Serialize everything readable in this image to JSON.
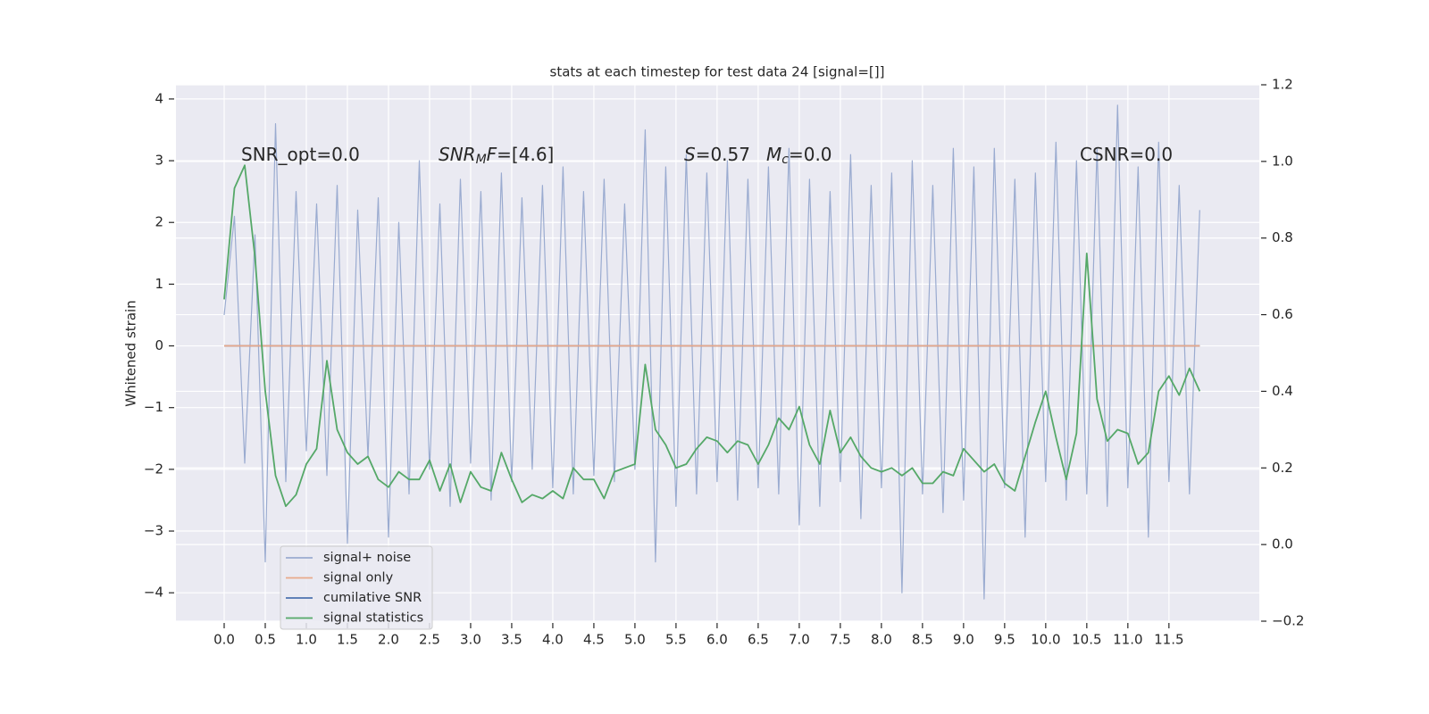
{
  "chart_data": {
    "type": "line",
    "title": "stats at each timestep for test data 24 [signal=[]]",
    "y_label": "Whitened strain",
    "x": [
      0,
      0.125,
      0.25,
      0.375,
      0.5,
      0.625,
      0.75,
      0.875,
      1,
      1.125,
      1.25,
      1.375,
      1.5,
      1.625,
      1.75,
      1.875,
      2,
      2.125,
      2.25,
      2.375,
      2.5,
      2.625,
      2.75,
      2.875,
      3,
      3.125,
      3.25,
      3.375,
      3.5,
      3.625,
      3.75,
      3.875,
      4,
      4.125,
      4.25,
      4.375,
      4.5,
      4.625,
      4.75,
      4.875,
      5,
      5.125,
      5.25,
      5.375,
      5.5,
      5.625,
      5.75,
      5.875,
      6,
      6.125,
      6.25,
      6.375,
      6.5,
      6.625,
      6.75,
      6.875,
      7,
      7.125,
      7.25,
      7.375,
      7.5,
      7.625,
      7.75,
      7.875,
      8,
      8.125,
      8.25,
      8.375,
      8.5,
      8.625,
      8.75,
      8.875,
      9,
      9.125,
      9.25,
      9.375,
      9.5,
      9.625,
      9.75,
      9.875,
      10,
      10.125,
      10.25,
      10.375,
      10.5,
      10.625,
      10.75,
      10.875,
      11,
      11.125,
      11.25,
      11.375,
      11.5,
      11.625,
      11.75,
      11.875
    ],
    "series": [
      {
        "name": "signal+ noise",
        "color": "#9aabd0",
        "values": [
          0.5,
          2.1,
          -1.9,
          1.8,
          -3.5,
          3.6,
          -2.2,
          2.5,
          -1.7,
          2.3,
          -2.1,
          2.6,
          -3.2,
          2.2,
          -1.8,
          2.4,
          -3.1,
          2.0,
          -2.4,
          3.0,
          -2.0,
          2.3,
          -2.6,
          2.7,
          -1.9,
          2.5,
          -2.5,
          2.8,
          -2.2,
          2.4,
          -2.0,
          2.6,
          -2.3,
          2.9,
          -2.4,
          2.5,
          -2.1,
          2.7,
          -2.2,
          2.3,
          -2.0,
          3.5,
          -3.5,
          2.9,
          -2.6,
          3.1,
          -2.4,
          2.8,
          -2.2,
          3.0,
          -2.5,
          2.7,
          -2.3,
          2.9,
          -2.4,
          3.2,
          -2.9,
          2.7,
          -2.6,
          2.5,
          -2.2,
          3.1,
          -2.8,
          2.6,
          -2.3,
          2.8,
          -4.0,
          3.0,
          -2.4,
          2.6,
          -2.7,
          3.2,
          -2.5,
          2.9,
          -4.1,
          3.2,
          -2.3,
          2.7,
          -3.1,
          2.8,
          -2.2,
          3.3,
          -2.5,
          3.0,
          -2.4,
          3.2,
          -2.6,
          3.9,
          -2.3,
          2.9,
          -3.1,
          3.3,
          -2.2,
          2.6,
          -2.4,
          2.2
        ]
      },
      {
        "name": "signal only",
        "color": "#e8a98a",
        "values": [
          0,
          0,
          0,
          0,
          0,
          0,
          0,
          0,
          0,
          0,
          0,
          0,
          0,
          0,
          0,
          0,
          0,
          0,
          0,
          0,
          0,
          0,
          0,
          0,
          0,
          0,
          0,
          0,
          0,
          0,
          0,
          0,
          0,
          0,
          0,
          0,
          0,
          0,
          0,
          0,
          0,
          0,
          0,
          0,
          0,
          0,
          0,
          0,
          0,
          0,
          0,
          0,
          0,
          0,
          0,
          0,
          0,
          0,
          0,
          0,
          0,
          0,
          0,
          0,
          0,
          0,
          0,
          0,
          0,
          0,
          0,
          0,
          0,
          0,
          0,
          0,
          0,
          0,
          0,
          0,
          0,
          0,
          0,
          0,
          0,
          0,
          0,
          0,
          0,
          0,
          0,
          0,
          0,
          0,
          0,
          0
        ]
      },
      {
        "name": "cumilative SNR",
        "color": "#4c72b0",
        "values": [
          0,
          0,
          0,
          0,
          0,
          0,
          0,
          0,
          0,
          0,
          0,
          0,
          0,
          0,
          0,
          0,
          0,
          0,
          0,
          0,
          0,
          0,
          0,
          0,
          0,
          0,
          0,
          0,
          0,
          0,
          0,
          0,
          0,
          0,
          0,
          0,
          0,
          0,
          0,
          0,
          0,
          0,
          0,
          0,
          0,
          0,
          0,
          0,
          0,
          0,
          0,
          0,
          0,
          0,
          0,
          0,
          0,
          0,
          0,
          0,
          0,
          0,
          0,
          0,
          0,
          0,
          0,
          0,
          0,
          0,
          0,
          0,
          0,
          0,
          0,
          0,
          0,
          0,
          0,
          0,
          0,
          0,
          0,
          0,
          0,
          0,
          0,
          0,
          0,
          0,
          0,
          0,
          0,
          0,
          0,
          0
        ]
      },
      {
        "name": "signal statistics",
        "color": "#55a868",
        "axis": "y2",
        "values": [
          0.64,
          0.93,
          0.99,
          0.75,
          0.4,
          0.18,
          0.1,
          0.13,
          0.21,
          0.25,
          0.48,
          0.3,
          0.24,
          0.21,
          0.23,
          0.17,
          0.15,
          0.19,
          0.17,
          0.17,
          0.22,
          0.14,
          0.21,
          0.11,
          0.19,
          0.15,
          0.14,
          0.24,
          0.17,
          0.11,
          0.13,
          0.12,
          0.14,
          0.12,
          0.2,
          0.17,
          0.17,
          0.12,
          0.19,
          0.2,
          0.21,
          0.47,
          0.3,
          0.26,
          0.2,
          0.21,
          0.25,
          0.28,
          0.27,
          0.24,
          0.27,
          0.26,
          0.21,
          0.26,
          0.33,
          0.3,
          0.36,
          0.26,
          0.21,
          0.35,
          0.24,
          0.28,
          0.23,
          0.2,
          0.19,
          0.2,
          0.18,
          0.2,
          0.16,
          0.16,
          0.19,
          0.18,
          0.25,
          0.22,
          0.19,
          0.21,
          0.16,
          0.14,
          0.23,
          0.32,
          0.4,
          0.28,
          0.17,
          0.29,
          0.76,
          0.38,
          0.27,
          0.3,
          0.29,
          0.21,
          0.24,
          0.4,
          0.44,
          0.39,
          0.46,
          0.4
        ]
      }
    ],
    "xlim": [
      -0.587,
      12.6
    ],
    "xticks": [
      {
        "value": 0,
        "label": "0.0"
      },
      0.5,
      {
        "value": 1,
        "label": "1.0"
      },
      1.5,
      {
        "value": 2,
        "label": "2.0"
      },
      2.5,
      {
        "value": 3,
        "label": "3.0"
      },
      3.5,
      {
        "value": 4,
        "label": "4.0"
      },
      4.5,
      {
        "value": 5,
        "label": "5.0"
      },
      5.5,
      {
        "value": 6,
        "label": "6.0"
      },
      6.5,
      {
        "value": 7,
        "label": "7.0"
      },
      7.5,
      {
        "value": 8,
        "label": "8.0"
      },
      8.5,
      {
        "value": 9,
        "label": "9.0"
      },
      9.5,
      {
        "value": 10,
        "label": "10.0"
      },
      10.5,
      {
        "value": 11,
        "label": "11.0"
      },
      11.5
    ],
    "ylim": [
      -4.46,
      4.23
    ],
    "yticks": [
      {
        "value": -4,
        "label": "−4"
      },
      {
        "value": -3,
        "label": "−3"
      },
      {
        "value": -2,
        "label": "−2"
      },
      {
        "value": -1,
        "label": "−1"
      },
      0,
      1,
      2,
      3,
      4
    ],
    "y2lim": [
      -0.2,
      1.2
    ],
    "y2ticks": [
      {
        "value": -0.2,
        "label": "−0.2"
      },
      {
        "value": 0,
        "label": "0.0"
      },
      0.2,
      0.4,
      0.6,
      0.8,
      {
        "value": 1,
        "label": "1.0"
      },
      1.2
    ],
    "grid": true,
    "legend": "lower left",
    "annotations": [
      {
        "parts": [
          {
            "text": "SNR_opt=0.0",
            "style": "normal"
          }
        ]
      },
      {
        "parts": [
          {
            "text": "SNR",
            "style": "italic"
          },
          {
            "text": "M",
            "style": "sub"
          },
          {
            "text": "F",
            "style": "italic"
          },
          {
            "text": "=[4.6]",
            "style": "normal"
          }
        ]
      },
      {
        "parts": [
          {
            "text": "S",
            "style": "italic"
          },
          {
            "text": "=0.57",
            "style": "normal"
          }
        ]
      },
      {
        "parts": [
          {
            "text": "M",
            "style": "italic"
          },
          {
            "text": "c",
            "style": "sub"
          },
          {
            "text": "=0.0",
            "style": "normal"
          }
        ]
      },
      {
        "parts": [
          {
            "text": "CSNR=0.0",
            "style": "normal"
          }
        ]
      }
    ]
  }
}
